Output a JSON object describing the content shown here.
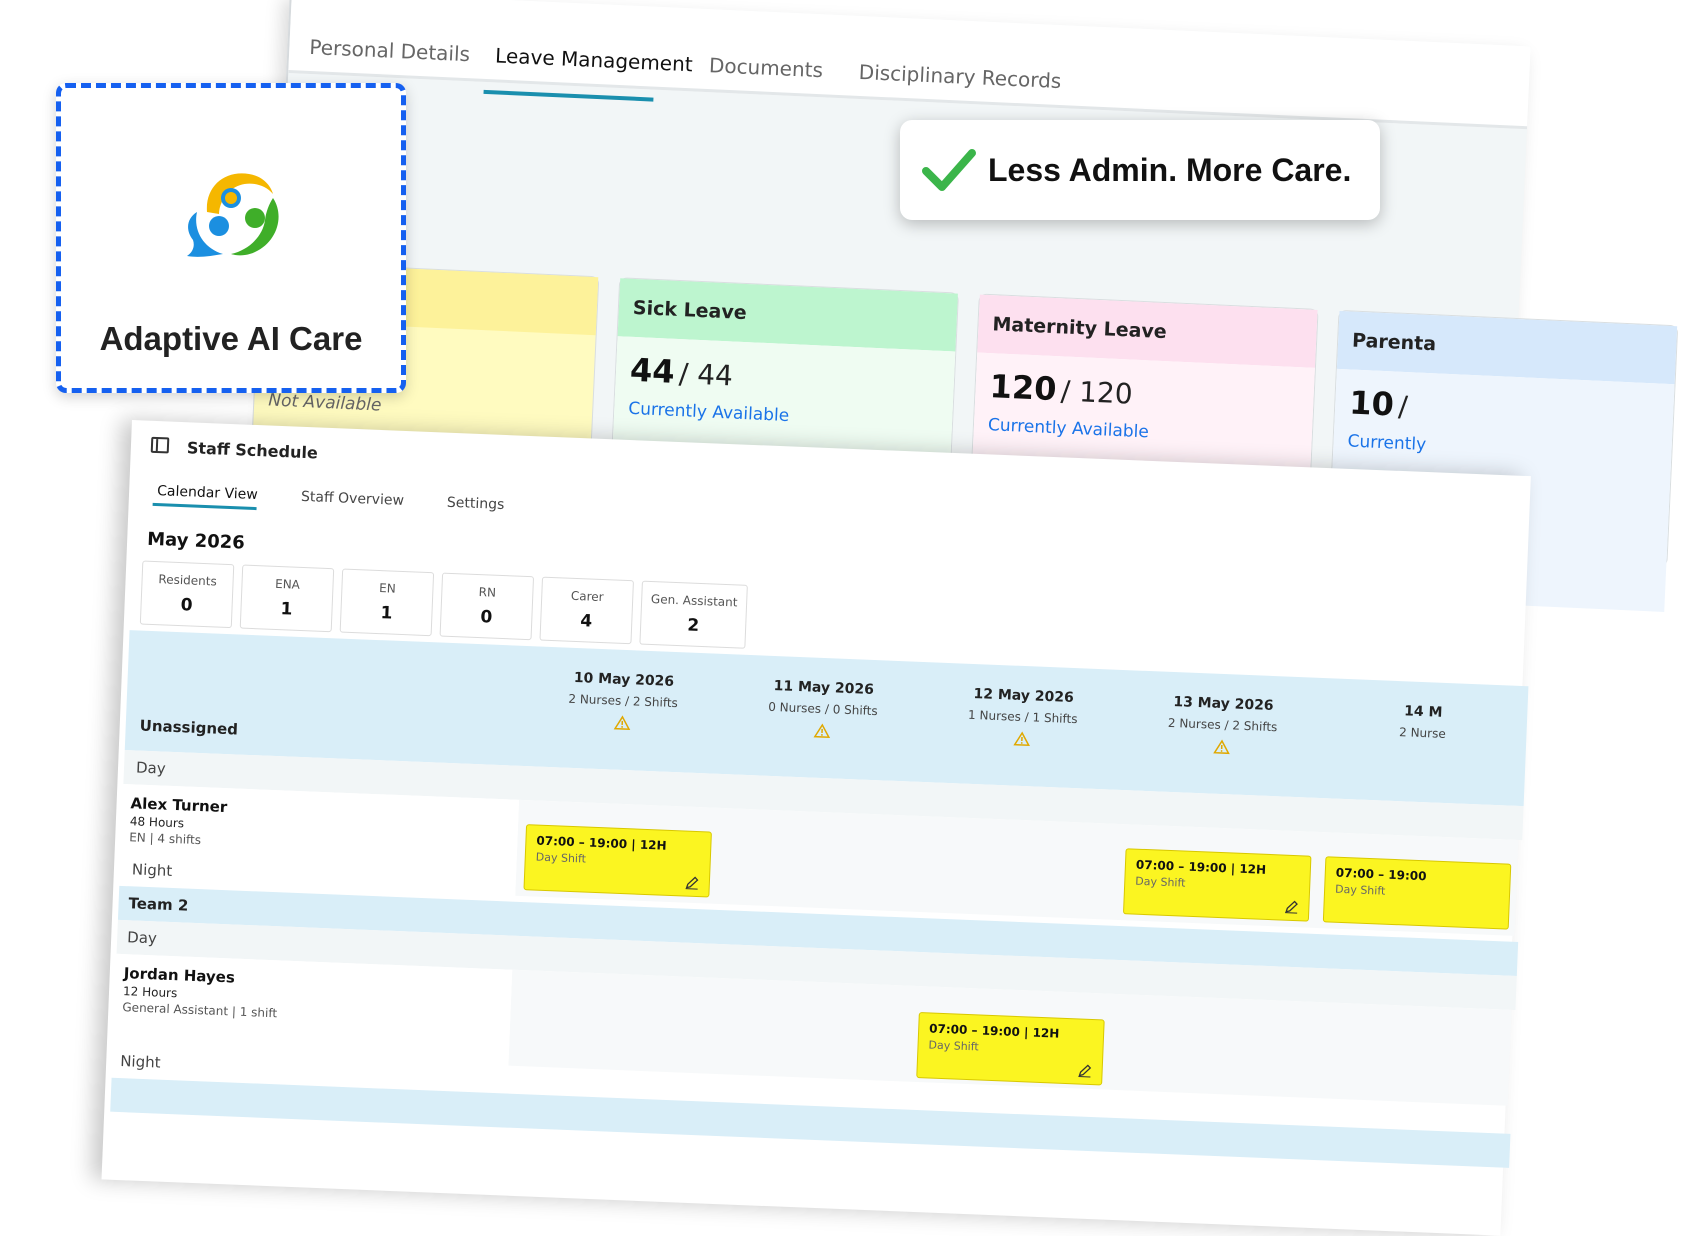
{
  "leave_panel": {
    "tabs": [
      {
        "label": "Personal Details"
      },
      {
        "label": "Leave Management"
      },
      {
        "label": "Documents"
      },
      {
        "label": "Disciplinary Records"
      }
    ],
    "partial_card_status": "Not Available",
    "cards": [
      {
        "title": "Sick Leave",
        "available": "44",
        "total": "/ 44",
        "status": "Currently Available",
        "color": "#bdf5cf"
      },
      {
        "title": "Maternity Leave",
        "available": "120",
        "total": "/ 120",
        "status": "Currently Available",
        "color": "#fde0ef"
      },
      {
        "title": "Parenta",
        "available": "10",
        "total": "/",
        "status": "Currently",
        "color": "#d6e8fb"
      }
    ]
  },
  "tagline": "Less Admin. More Care.",
  "brand": {
    "name": "Adaptive AI Care"
  },
  "schedule": {
    "title": "Staff Schedule",
    "tabs": [
      {
        "label": "Calendar View"
      },
      {
        "label": "Staff Overview"
      },
      {
        "label": "Settings"
      }
    ],
    "month": "May 2026",
    "stats": [
      {
        "label": "Residents",
        "value": "0"
      },
      {
        "label": "ENA",
        "value": "1"
      },
      {
        "label": "EN",
        "value": "1"
      },
      {
        "label": "RN",
        "value": "0"
      },
      {
        "label": "Carer",
        "value": "4"
      },
      {
        "label": "Gen. Assistant",
        "value": "2"
      }
    ],
    "dates": [
      {
        "date": "10 May 2026",
        "summary": "2 Nurses / 2 Shifts"
      },
      {
        "date": "11 May 2026",
        "summary": "0 Nurses / 0 Shifts"
      },
      {
        "date": "12 May 2026",
        "summary": "1 Nurses / 1 Shifts"
      },
      {
        "date": "13 May 2026",
        "summary": "2 Nurses / 2 Shifts"
      },
      {
        "date": "14 M",
        "summary": "2 Nurse"
      }
    ],
    "groups": {
      "unassigned": "Unassigned",
      "team2": "Team 2",
      "day": "Day",
      "night": "Night"
    },
    "staff": [
      {
        "name": "Alex Turner",
        "hours": "48 Hours",
        "role": "EN | 4 shifts"
      },
      {
        "name": "Jordan Hayes",
        "hours": "12 Hours",
        "role": "General Assistant | 1 shift"
      }
    ],
    "shift": {
      "time": "07:00 – 19:00 | 12H",
      "type": "Day Shift"
    },
    "shift_partial_time": "07:00 – 19:00"
  },
  "colors": {
    "accent": "#1a8fae",
    "shift": "#fbf521",
    "band": "#d9eef8",
    "logo_border": "#1560f0"
  }
}
